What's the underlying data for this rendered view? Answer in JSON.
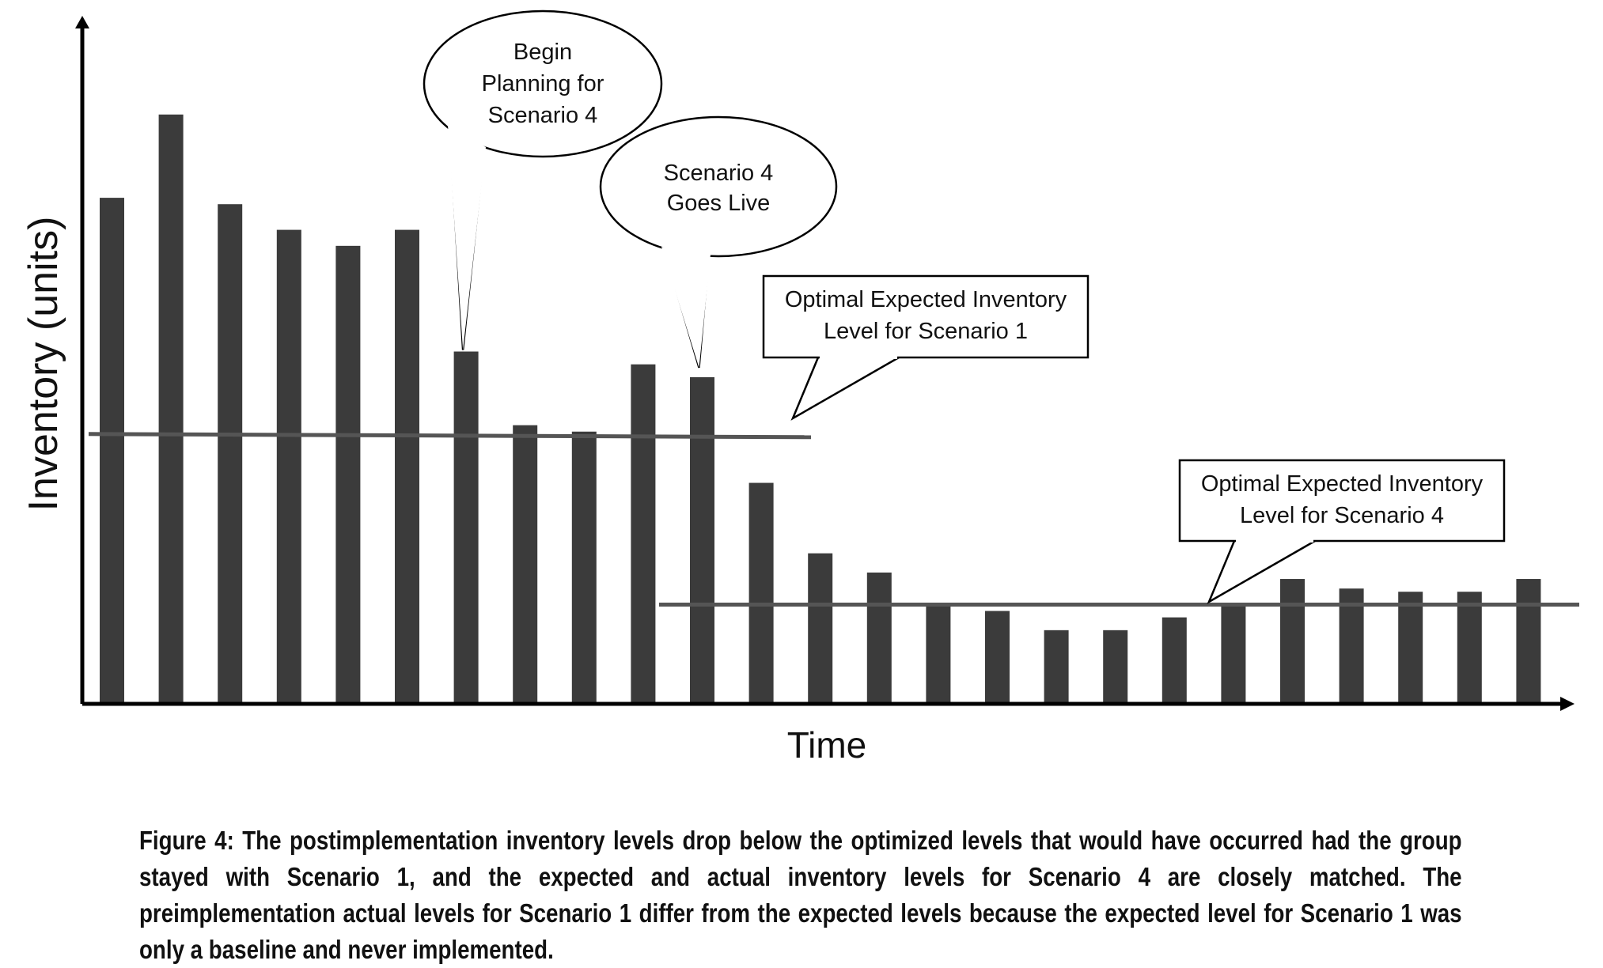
{
  "chart_data": {
    "type": "bar",
    "title": "",
    "xlabel": "Time",
    "ylabel": "Inventory (units)",
    "ylim": [
      0,
      100
    ],
    "x_ticks_shown": false,
    "y_ticks_shown": false,
    "series": [
      {
        "name": "Actual inventory",
        "values": [
          79,
          92,
          78,
          74,
          71.5,
          74,
          55,
          43.5,
          42.5,
          53,
          51,
          34.5,
          23.5,
          20.5,
          15.5,
          14.5,
          11.5,
          11.5,
          13.5,
          15.5,
          19.5,
          18,
          17.5,
          17.5,
          19.5
        ]
      }
    ],
    "reference_lines": [
      {
        "name": "Optimal Expected Inventory Level for Scenario 1",
        "value": 42,
        "from_bar": 0,
        "to_bar": 12.5
      },
      {
        "name": "Optimal Expected Inventory Level for Scenario 4",
        "value": 15.5,
        "from_bar": 9.7,
        "to_bar": 25
      }
    ],
    "annotations": [
      {
        "name": "begin-planning-callout",
        "lines": [
          "Begin",
          "Planning for",
          "Scenario 4"
        ],
        "target_bar": 6
      },
      {
        "name": "goes-live-callout",
        "lines": [
          "Scenario 4",
          "Goes Live"
        ],
        "target_bar": 10
      },
      {
        "name": "scenario1-level-callout",
        "lines": [
          "Optimal Expected Inventory",
          "Level for Scenario 1"
        ]
      },
      {
        "name": "scenario4-level-callout",
        "lines": [
          "Optimal Expected Inventory",
          "Level for Scenario 4"
        ]
      }
    ],
    "colors": {
      "bar": "#3b3b3b",
      "line": "#555555",
      "axis": "#000000"
    }
  },
  "caption": "Figure 4: The postimplementation inventory levels drop below the optimized levels that would have occurred had the group stayed with Scenario 1, and the expected and actual inventory levels for Scenario 4 are closely matched. The preimplementation actual levels for Scenario 1 differ from the expected levels because the expected level for Scenario 1 was only a baseline and never implemented."
}
